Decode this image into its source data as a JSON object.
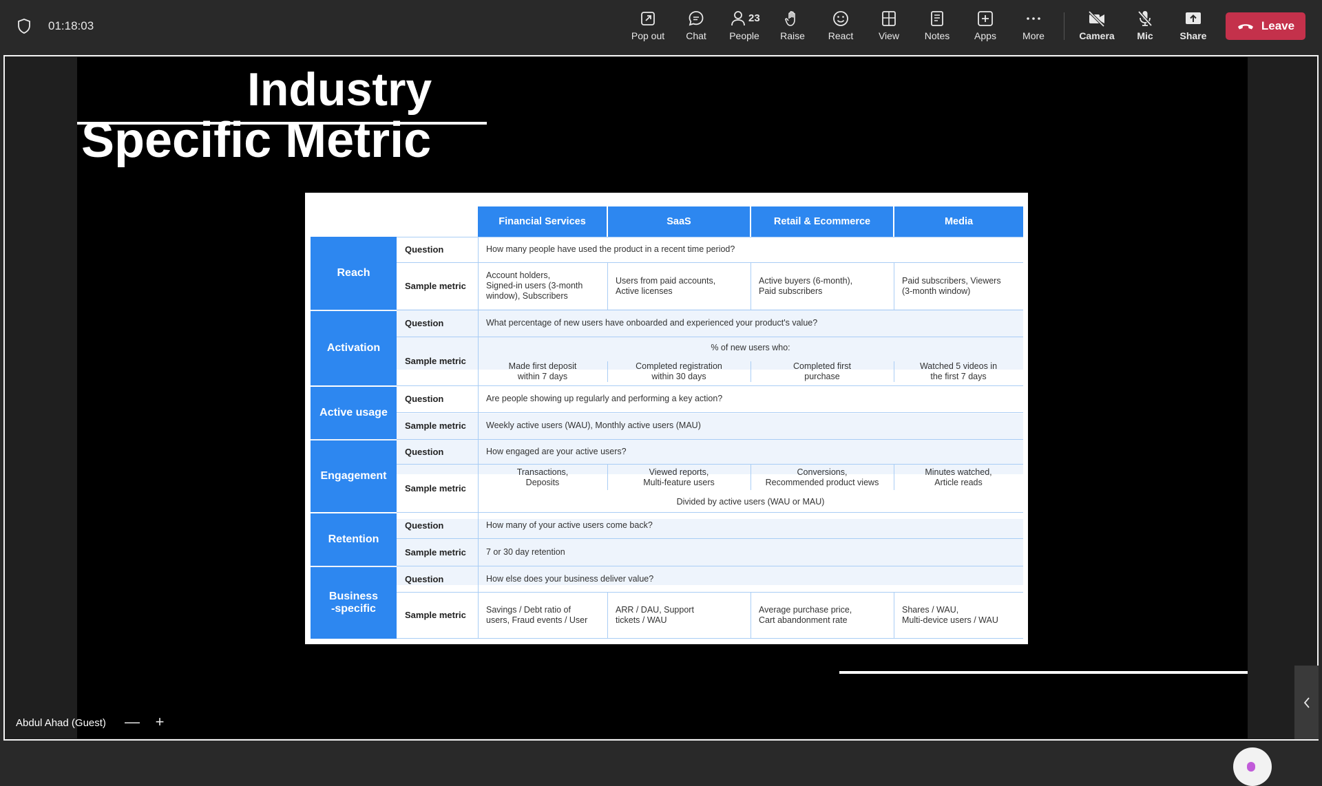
{
  "topbar": {
    "timer": "01:18:03",
    "buttons": {
      "popout": "Pop out",
      "chat": "Chat",
      "people": "People",
      "people_count": "23",
      "raise": "Raise",
      "react": "React",
      "view": "View",
      "notes": "Notes",
      "apps": "Apps",
      "more": "More",
      "camera": "Camera",
      "mic": "Mic",
      "share": "Share"
    },
    "leave_label": "Leave",
    "leave_color": "#c4314b"
  },
  "slide": {
    "title_line1": "Industry",
    "title_line2": "Specific Metric",
    "accent_color": "#2d87f0",
    "table": {
      "columns": [
        "Financial Services",
        "SaaS",
        "Retail & Ecommerce",
        "Media"
      ],
      "row_labels": {
        "question": "Question",
        "sample": "Sample metric"
      },
      "reach": {
        "name": "Reach",
        "question": "How many people have used the product in a recent time period?",
        "metrics": [
          "Account holders,\nSigned-in users (3-month\nwindow), Subscribers",
          "Users from paid accounts,\nActive licenses",
          "Active buyers (6-month),\nPaid subscribers",
          "Paid subscribers, Viewers\n(3-month window)"
        ]
      },
      "activation": {
        "name": "Activation",
        "question": "What percentage of new users have onboarded and experienced your product's value?",
        "intro": "% of new users who:",
        "metrics": [
          "Made first deposit\nwithin 7 days",
          "Completed registration\nwithin 30 days",
          "Completed first\npurchase",
          "Watched 5 videos in\nthe first 7 days"
        ]
      },
      "active_usage": {
        "name": "Active usage",
        "question": "Are people showing up regularly and performing a key action?",
        "metric": "Weekly active users (WAU), Monthly active users (MAU)"
      },
      "engagement": {
        "name": "Engagement",
        "question": "How engaged are your active users?",
        "metrics": [
          "Transactions,\nDeposits",
          "Viewed reports,\nMulti-feature users",
          "Conversions,\nRecommended product views",
          "Minutes watched,\nArticle reads"
        ],
        "footer": "Divided by active users (WAU or MAU)"
      },
      "retention": {
        "name": "Retention",
        "question": "How many of your active users come back?",
        "metric": "7 or 30 day retention"
      },
      "business": {
        "name": "Business\n-specific",
        "question": "How else does your business deliver value?",
        "metrics": [
          "Savings / Debt ratio of\nusers, Fraud events  / User",
          "ARR / DAU, Support\ntickets / WAU",
          "Average purchase price,\nCart abandonment rate",
          "Shares / WAU,\nMulti-device users / WAU"
        ]
      }
    }
  },
  "participant": {
    "name": "Abdul Ahad (Guest)",
    "zoom_out": "—",
    "zoom_in": "+"
  }
}
